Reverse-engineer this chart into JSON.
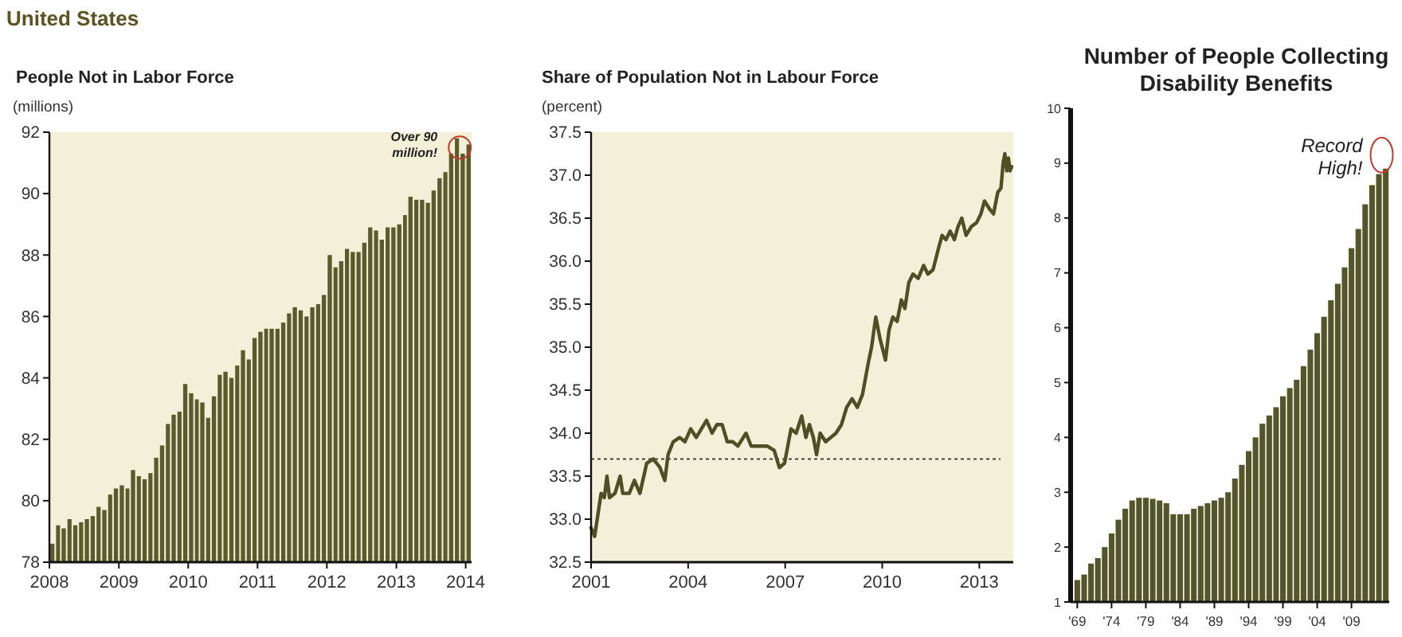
{
  "chart_data": [
    {
      "type": "bar",
      "title": "People Not in Labor Force",
      "ylabel": "(millions)",
      "annotations": [
        "United States",
        {
          "text": "Over 90 million!",
          "x": "2013-12",
          "y": 91.5
        }
      ],
      "x": [
        "2008-01",
        "2008-02",
        "2008-03",
        "2008-04",
        "2008-05",
        "2008-06",
        "2008-07",
        "2008-08",
        "2008-09",
        "2008-10",
        "2008-11",
        "2008-12",
        "2009-01",
        "2009-02",
        "2009-03",
        "2009-04",
        "2009-05",
        "2009-06",
        "2009-07",
        "2009-08",
        "2009-09",
        "2009-10",
        "2009-11",
        "2009-12",
        "2010-01",
        "2010-02",
        "2010-03",
        "2010-04",
        "2010-05",
        "2010-06",
        "2010-07",
        "2010-08",
        "2010-09",
        "2010-10",
        "2010-11",
        "2010-12",
        "2011-01",
        "2011-02",
        "2011-03",
        "2011-04",
        "2011-05",
        "2011-06",
        "2011-07",
        "2011-08",
        "2011-09",
        "2011-10",
        "2011-11",
        "2011-12",
        "2012-01",
        "2012-02",
        "2012-03",
        "2012-04",
        "2012-05",
        "2012-06",
        "2012-07",
        "2012-08",
        "2012-09",
        "2012-10",
        "2012-11",
        "2012-12",
        "2013-01",
        "2013-02",
        "2013-03",
        "2013-04",
        "2013-05",
        "2013-06",
        "2013-07",
        "2013-08",
        "2013-09",
        "2013-10",
        "2013-11",
        "2013-12",
        "2014-01"
      ],
      "values": [
        78.6,
        79.2,
        79.1,
        79.4,
        79.2,
        79.3,
        79.4,
        79.5,
        79.8,
        79.7,
        80.2,
        80.4,
        80.5,
        80.4,
        81.0,
        80.8,
        80.7,
        80.9,
        81.4,
        81.8,
        82.5,
        82.8,
        82.9,
        83.8,
        83.5,
        83.3,
        83.2,
        82.7,
        83.4,
        84.1,
        84.2,
        84.0,
        84.4,
        84.9,
        84.6,
        85.3,
        85.5,
        85.6,
        85.6,
        85.6,
        85.8,
        86.1,
        86.3,
        86.2,
        86.0,
        86.3,
        86.4,
        86.7,
        88.0,
        87.6,
        87.8,
        88.2,
        88.1,
        88.1,
        88.4,
        88.9,
        88.8,
        88.5,
        88.9,
        88.9,
        89.0,
        89.3,
        89.9,
        89.8,
        89.8,
        89.7,
        90.1,
        90.5,
        90.7,
        91.3,
        91.8,
        91.3,
        91.6
      ],
      "color": "#5a5a2c",
      "xlim": [
        "2008-01",
        "2014-02"
      ],
      "xticks": [
        "2008",
        "2009",
        "2010",
        "2011",
        "2012",
        "2013",
        "2014"
      ],
      "ylim": [
        78,
        92
      ],
      "yticks": [
        78,
        80,
        82,
        84,
        86,
        88,
        90,
        92
      ]
    },
    {
      "type": "line",
      "title": "Share of Population Not in Labour Force",
      "ylabel": "(percent)",
      "color": "#4f4f26",
      "x": [
        2001.0,
        2001.11,
        2001.31,
        2001.41,
        2001.49,
        2001.57,
        2001.74,
        2001.9,
        2001.98,
        2002.18,
        2002.34,
        2002.51,
        2002.72,
        2002.92,
        2003.13,
        2003.28,
        2003.38,
        2003.54,
        2003.74,
        2003.9,
        2004.08,
        2004.25,
        2004.41,
        2004.57,
        2004.74,
        2004.89,
        2005.05,
        2005.21,
        2005.38,
        2005.54,
        2005.79,
        2005.95,
        2006.2,
        2006.44,
        2006.66,
        2006.82,
        2006.98,
        2007.18,
        2007.34,
        2007.51,
        2007.64,
        2007.75,
        2007.87,
        2007.97,
        2008.08,
        2008.25,
        2008.41,
        2008.57,
        2008.74,
        2008.9,
        2009.07,
        2009.23,
        2009.39,
        2009.56,
        2009.67,
        2009.8,
        2009.93,
        2010.1,
        2010.21,
        2010.33,
        2010.46,
        2010.59,
        2010.7,
        2010.82,
        2010.95,
        2011.11,
        2011.28,
        2011.41,
        2011.57,
        2011.74,
        2011.85,
        2011.97,
        2012.1,
        2012.23,
        2012.34,
        2012.46,
        2012.59,
        2012.75,
        2012.92,
        2013.05,
        2013.16,
        2013.33,
        2013.44,
        2013.57,
        2013.67,
        2013.74,
        2013.79,
        2013.85,
        2013.9,
        2013.95,
        2014.0
      ],
      "values": [
        32.9,
        32.8,
        33.3,
        33.25,
        33.5,
        33.25,
        33.3,
        33.5,
        33.3,
        33.3,
        33.45,
        33.3,
        33.65,
        33.7,
        33.6,
        33.45,
        33.75,
        33.9,
        33.95,
        33.9,
        34.05,
        33.95,
        34.05,
        34.15,
        34.0,
        34.1,
        34.1,
        33.9,
        33.9,
        33.85,
        34.0,
        33.85,
        33.85,
        33.85,
        33.8,
        33.6,
        33.65,
        34.05,
        34.0,
        34.2,
        33.95,
        34.1,
        33.95,
        33.75,
        34.0,
        33.9,
        33.95,
        34.0,
        34.1,
        34.3,
        34.4,
        34.3,
        34.45,
        34.8,
        35.0,
        35.35,
        35.1,
        34.85,
        35.2,
        35.35,
        35.3,
        35.55,
        35.45,
        35.75,
        35.85,
        35.8,
        35.95,
        35.85,
        35.9,
        36.15,
        36.3,
        36.25,
        36.35,
        36.25,
        36.4,
        36.5,
        36.3,
        36.4,
        36.45,
        36.55,
        36.7,
        36.6,
        36.55,
        36.8,
        36.85,
        37.15,
        37.25,
        37.05,
        37.2,
        37.05,
        37.1
      ],
      "xlim": [
        2001,
        2014.05
      ],
      "xticks": [
        2001,
        2004,
        2007,
        2010,
        2013
      ],
      "ylim": [
        32.5,
        37.5
      ],
      "yticks": [
        32.5,
        {
          "value": 33,
          "label": "33.0"
        },
        33.5,
        {
          "value": 34,
          "label": "34.0"
        },
        34.5,
        {
          "value": 35,
          "label": "35.0"
        },
        35.5,
        {
          "value": 36,
          "label": "36.0"
        },
        36.5,
        {
          "value": 37,
          "label": "37.0"
        },
        37.5
      ],
      "ref_lines": [
        {
          "axis": "y",
          "value": 33.7,
          "color": "#444444",
          "line_style": "dotted"
        }
      ]
    },
    {
      "type": "bar",
      "title": "Number of People Collecting Disability Benefits",
      "annotations": [
        "Record High!"
      ],
      "color": "#55552a",
      "categories": [
        "'69",
        null,
        null,
        null,
        null,
        "'74",
        null,
        null,
        null,
        null,
        "'79",
        null,
        null,
        null,
        null,
        "'84",
        null,
        null,
        null,
        null,
        "'89",
        null,
        null,
        null,
        null,
        "'94",
        null,
        null,
        null,
        null,
        "'99",
        null,
        null,
        null,
        null,
        "'04",
        null,
        null,
        null,
        null,
        "'09",
        null,
        null,
        null,
        null,
        null
      ],
      "values": [
        1.4,
        1.5,
        1.7,
        1.8,
        2.0,
        2.25,
        2.5,
        2.7,
        2.85,
        2.9,
        2.9,
        2.88,
        2.85,
        2.8,
        2.6,
        2.6,
        2.6,
        2.7,
        2.75,
        2.8,
        2.85,
        2.9,
        3.0,
        3.25,
        3.5,
        3.75,
        4.0,
        4.25,
        4.4,
        4.55,
        4.75,
        4.9,
        5.05,
        5.3,
        5.6,
        5.9,
        6.2,
        6.5,
        6.8,
        7.1,
        7.45,
        7.8,
        8.25,
        8.6,
        8.8,
        8.9
      ],
      "ylim": [
        1,
        10
      ],
      "yticks": [
        1,
        2,
        3,
        4,
        5,
        6,
        7,
        8,
        9,
        10
      ]
    }
  ]
}
